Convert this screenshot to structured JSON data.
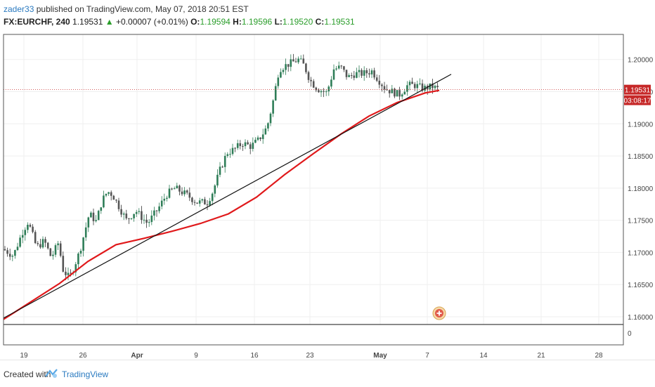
{
  "header": {
    "author": "zader33",
    "published": "published on TradingView.com, May 07, 2018 20:51 EST",
    "symbol": "FX:EURCHF, 240",
    "last": "1.19531",
    "change_arrow": "▲",
    "change": "+0.00007 (+0.01%)",
    "o_label": "O:",
    "o": "1.19594",
    "h_label": "H:",
    "h": "1.19596",
    "l_label": "L:",
    "l": "1.19520",
    "c_label": "C:",
    "c": "1.19531"
  },
  "footer": {
    "created_with": "Created with",
    "brand": "TradingView",
    "logo_icon": "tradingview-logo-icon"
  },
  "price_badge": {
    "value": "1.19531",
    "countdown": "03:08:17",
    "color": "#c62828"
  },
  "marker_icon": "plus-circle-icon",
  "colors": {
    "up": "#2e7d57",
    "down": "#333333",
    "ma": "#e0191b",
    "trend": "#111111",
    "last_price_line": "#c62828"
  },
  "chart_data": {
    "type": "candlestick",
    "symbol": "FX:EURCHF",
    "interval": "240",
    "y_ticks": [
      1.2,
      1.195,
      1.19,
      1.185,
      1.18,
      1.175,
      1.17,
      1.165,
      1.16
    ],
    "ylim": [
      1.1588,
      1.2039
    ],
    "x_ticks": [
      "19",
      "26",
      "Apr",
      "9",
      "16",
      "23",
      "May",
      "7",
      "14",
      "21",
      "28"
    ],
    "volume_pane_tick": "0",
    "grid": true,
    "price_path": [
      [
        0,
        1.1705
      ],
      [
        14,
        1.1695
      ],
      [
        27,
        1.1732
      ],
      [
        35,
        1.1748
      ],
      [
        47,
        1.1708
      ],
      [
        58,
        1.1718
      ],
      [
        68,
        1.1692
      ],
      [
        78,
        1.1715
      ],
      [
        85,
        1.1672
      ],
      [
        94,
        1.166
      ],
      [
        108,
        1.17
      ],
      [
        122,
        1.176
      ],
      [
        132,
        1.1748
      ],
      [
        140,
        1.178
      ],
      [
        148,
        1.1795
      ],
      [
        155,
        1.179
      ],
      [
        165,
        1.177
      ],
      [
        175,
        1.175
      ],
      [
        188,
        1.1765
      ],
      [
        205,
        1.1745
      ],
      [
        220,
        1.1768
      ],
      [
        232,
        1.179
      ],
      [
        244,
        1.18
      ],
      [
        260,
        1.179
      ],
      [
        275,
        1.1778
      ],
      [
        290,
        1.1778
      ],
      [
        298,
        1.1795
      ],
      [
        308,
        1.1828
      ],
      [
        318,
        1.1855
      ],
      [
        328,
        1.186
      ],
      [
        340,
        1.187
      ],
      [
        352,
        1.1865
      ],
      [
        363,
        1.1875
      ],
      [
        375,
        1.1895
      ],
      [
        383,
        1.1932
      ],
      [
        392,
        1.1985
      ],
      [
        400,
        1.199
      ],
      [
        410,
        1.1995
      ],
      [
        420,
        1.2
      ],
      [
        428,
        1.199
      ],
      [
        436,
        1.1968
      ],
      [
        446,
        1.1955
      ],
      [
        460,
        1.1948
      ],
      [
        470,
        1.1985
      ],
      [
        480,
        1.1988
      ],
      [
        490,
        1.1972
      ],
      [
        500,
        1.1978
      ],
      [
        512,
        1.1978
      ],
      [
        524,
        1.1982
      ],
      [
        534,
        1.1968
      ],
      [
        543,
        1.1955
      ],
      [
        553,
        1.195
      ],
      [
        563,
        1.1945
      ],
      [
        575,
        1.196
      ],
      [
        586,
        1.196
      ],
      [
        597,
        1.1955
      ],
      [
        610,
        1.1958
      ],
      [
        616,
        1.1955
      ],
      [
        623,
        1.1953
      ]
    ],
    "series": [
      {
        "name": "",
        "type": "moving_average",
        "color": "#e0191b",
        "points": [
          [
            0,
            1.1596
          ],
          [
            40,
            1.1624
          ],
          [
            80,
            1.1652
          ],
          [
            120,
            1.1686
          ],
          [
            160,
            1.1712
          ],
          [
            200,
            1.1722
          ],
          [
            240,
            1.1733
          ],
          [
            280,
            1.1745
          ],
          [
            320,
            1.176
          ],
          [
            360,
            1.1786
          ],
          [
            400,
            1.1821
          ],
          [
            440,
            1.1853
          ],
          [
            480,
            1.1884
          ],
          [
            520,
            1.1912
          ],
          [
            560,
            1.1933
          ],
          [
            600,
            1.1948
          ],
          [
            620,
            1.1952
          ]
        ]
      },
      {
        "name": "",
        "type": "trend_line",
        "color": "#111111",
        "points": [
          [
            0,
            1.1598
          ],
          [
            637,
            1.1977
          ]
        ]
      }
    ],
    "last_price": 1.19531
  }
}
